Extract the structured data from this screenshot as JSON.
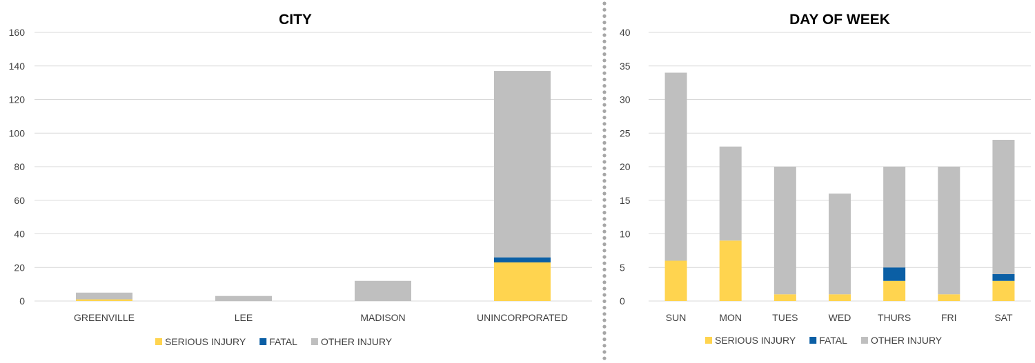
{
  "colors": {
    "serious": "#FFD44F",
    "fatal": "#0B5FA5",
    "other": "#BFBFBF",
    "grid": "#D9D9D9",
    "divider": "#A6A6A6"
  },
  "legend": [
    "SERIOUS INJURY",
    "FATAL",
    "OTHER INJURY"
  ],
  "chart_data": [
    {
      "type": "bar",
      "stacked": true,
      "title": "CITY",
      "categories": [
        "GREENVILLE",
        "LEE",
        "MADISON",
        "UNINCORPORATED"
      ],
      "series": [
        {
          "name": "SERIOUS INJURY",
          "values": [
            1,
            0,
            0,
            23
          ]
        },
        {
          "name": "FATAL",
          "values": [
            0,
            0,
            0,
            3
          ]
        },
        {
          "name": "OTHER INJURY",
          "values": [
            4,
            3,
            12,
            111
          ]
        }
      ],
      "ylim": [
        0,
        160
      ],
      "yticks": [
        0,
        20,
        40,
        60,
        80,
        100,
        120,
        140,
        160
      ],
      "grid": true,
      "legend_position": "bottom"
    },
    {
      "type": "bar",
      "stacked": true,
      "title": "DAY OF WEEK",
      "categories": [
        "SUN",
        "MON",
        "TUES",
        "WED",
        "THURS",
        "FRI",
        "SAT"
      ],
      "series": [
        {
          "name": "SERIOUS INJURY",
          "values": [
            6,
            9,
            1,
            1,
            3,
            1,
            3
          ]
        },
        {
          "name": "FATAL",
          "values": [
            0,
            0,
            0,
            0,
            2,
            0,
            1
          ]
        },
        {
          "name": "OTHER INJURY",
          "values": [
            28,
            14,
            19,
            15,
            15,
            19,
            20
          ]
        }
      ],
      "ylim": [
        0,
        40
      ],
      "yticks": [
        0,
        5,
        10,
        15,
        20,
        25,
        30,
        35,
        40
      ],
      "grid": true,
      "legend_position": "bottom"
    }
  ]
}
